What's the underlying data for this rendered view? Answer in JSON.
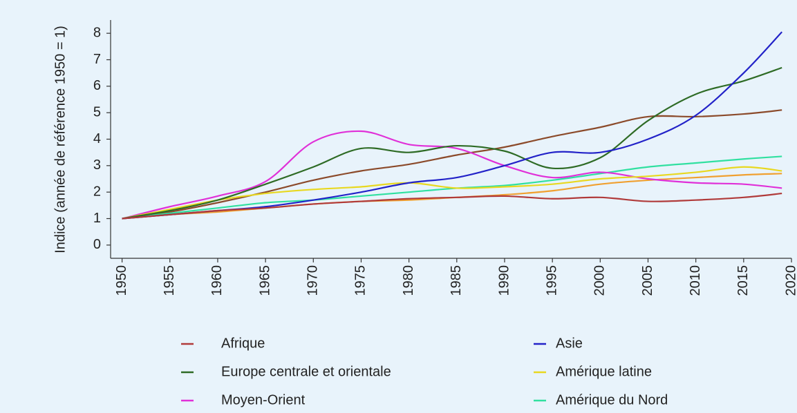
{
  "chart_data": {
    "type": "line",
    "ylabel": "Indice (année de référence 1950 = 1)",
    "x": [
      1950,
      1955,
      1960,
      1965,
      1970,
      1975,
      1980,
      1985,
      1990,
      1995,
      2000,
      2005,
      2010,
      2015,
      2019
    ],
    "series": [
      {
        "name": "Afrique",
        "color": "#b03a3a",
        "values": [
          1,
          1.15,
          1.3,
          1.4,
          1.55,
          1.65,
          1.75,
          1.8,
          1.85,
          1.75,
          1.8,
          1.65,
          1.7,
          1.8,
          1.95
        ]
      },
      {
        "name": "Asie",
        "color": "#2222c8",
        "values": [
          1,
          1.15,
          1.3,
          1.45,
          1.7,
          2.0,
          2.35,
          2.55,
          3.0,
          3.5,
          3.5,
          4.0,
          4.9,
          6.5,
          8.05
        ]
      },
      {
        "name": "Europe centrale et orientale",
        "color": "#2e6b25",
        "values": [
          1,
          1.3,
          1.7,
          2.3,
          2.95,
          3.65,
          3.5,
          3.75,
          3.55,
          2.9,
          3.3,
          4.7,
          5.7,
          6.2,
          6.7
        ]
      },
      {
        "name": "Amérique latine",
        "color": "#e8d820",
        "values": [
          1,
          1.35,
          1.7,
          1.95,
          2.1,
          2.2,
          2.35,
          2.15,
          2.2,
          2.3,
          2.5,
          2.6,
          2.75,
          2.95,
          2.8
        ]
      },
      {
        "name": "Moyen-Orient",
        "color": "#e030d8",
        "values": [
          1,
          1.45,
          1.85,
          2.4,
          3.9,
          4.3,
          3.8,
          3.65,
          3.0,
          2.55,
          2.75,
          2.5,
          2.35,
          2.3,
          2.15
        ]
      },
      {
        "name": "Amérique du Nord",
        "color": "#30e0a0",
        "values": [
          1,
          1.2,
          1.4,
          1.6,
          1.7,
          1.85,
          2.0,
          2.15,
          2.25,
          2.45,
          2.7,
          2.95,
          3.1,
          3.25,
          3.35
        ]
      },
      {
        "color": "#8b4a2a",
        "values": [
          1,
          1.25,
          1.6,
          2.0,
          2.45,
          2.8,
          3.05,
          3.4,
          3.7,
          4.1,
          4.45,
          4.85,
          4.85,
          4.95,
          5.1
        ]
      },
      {
        "color": "#f0a030",
        "values": [
          1,
          1.15,
          1.25,
          1.4,
          1.55,
          1.65,
          1.7,
          1.8,
          1.9,
          2.05,
          2.3,
          2.45,
          2.55,
          2.65,
          2.7
        ]
      }
    ],
    "xlim": [
      1948.8,
      2020
    ],
    "xticks": [
      1950,
      1955,
      1960,
      1965,
      1970,
      1975,
      1980,
      1985,
      1990,
      1995,
      2000,
      2005,
      2010,
      2015,
      2020
    ],
    "ylim": [
      -0.5,
      8.5
    ],
    "yticks": [
      0,
      1,
      2,
      3,
      4,
      5,
      6,
      7,
      8
    ],
    "grid": false
  }
}
